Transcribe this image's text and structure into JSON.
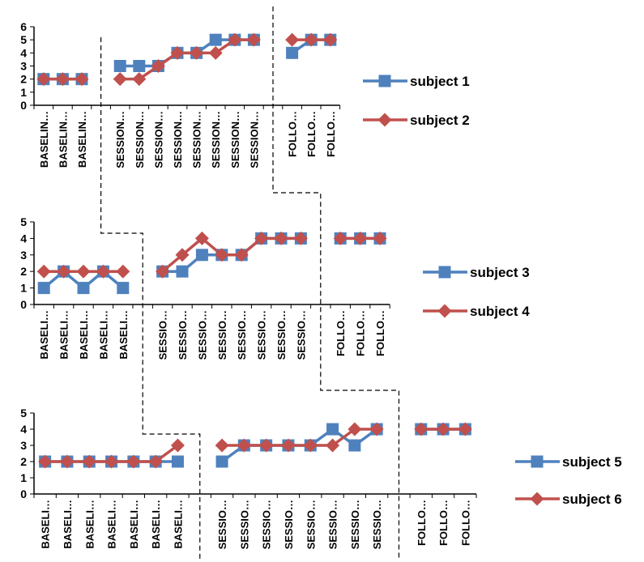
{
  "colors": {
    "series_a": "#4F81BD",
    "series_b": "#C0504D",
    "axis": "#000000",
    "phase_line": "#000000"
  },
  "chart_data": [
    {
      "type": "line",
      "ylim": [
        0,
        6
      ],
      "yticks": [
        "0",
        "1",
        "2",
        "3",
        "4",
        "5",
        "6"
      ],
      "categories": [
        "BASELIN…",
        "BASELIN…",
        "BASELIN…",
        "",
        "SESSION…",
        "SESSION…",
        "SESSION…",
        "SESSION…",
        "SESSION…",
        "SESSION…",
        "SESSION…",
        "SESSION…",
        "",
        "FOLLO…",
        "FOLLO…",
        "FOLLO…"
      ],
      "phases": [
        {
          "name": "baseline",
          "indices": [
            0,
            1,
            2
          ]
        },
        {
          "name": "sessions",
          "indices": [
            4,
            5,
            6,
            7,
            8,
            9,
            10,
            11
          ]
        },
        {
          "name": "follow-up",
          "indices": [
            13,
            14,
            15
          ]
        }
      ],
      "series": [
        {
          "name": "subject 1",
          "marker": "square",
          "values": [
            2,
            2,
            2,
            null,
            3,
            3,
            3,
            4,
            4,
            5,
            5,
            5,
            null,
            4,
            5,
            5
          ]
        },
        {
          "name": "subject 2",
          "marker": "diamond",
          "values": [
            2,
            2,
            2,
            null,
            2,
            2,
            3,
            4,
            4,
            4,
            5,
            5,
            null,
            5,
            5,
            5
          ]
        }
      ]
    },
    {
      "type": "line",
      "ylim": [
        0,
        5
      ],
      "yticks": [
        "0",
        "1",
        "2",
        "3",
        "4",
        "5"
      ],
      "categories": [
        "BASELI…",
        "BASELI…",
        "BASELI…",
        "BASELI…",
        "BASELI…",
        "",
        "SESSIO…",
        "SESSIO…",
        "SESSIO…",
        "SESSIO…",
        "SESSIO…",
        "SESSIO…",
        "SESSIO…",
        "SESSIO…",
        "",
        "FOLLO…",
        "FOLLO…",
        "FOLLO…"
      ],
      "phases": [
        {
          "name": "baseline",
          "indices": [
            0,
            1,
            2,
            3,
            4
          ]
        },
        {
          "name": "sessions",
          "indices": [
            6,
            7,
            8,
            9,
            10,
            11,
            12,
            13
          ]
        },
        {
          "name": "follow-up",
          "indices": [
            15,
            16,
            17
          ]
        }
      ],
      "series": [
        {
          "name": "subject 3",
          "marker": "square",
          "values": [
            1,
            2,
            1,
            2,
            1,
            null,
            2,
            2,
            3,
            3,
            3,
            4,
            4,
            4,
            null,
            4,
            4,
            4
          ]
        },
        {
          "name": "subject 4",
          "marker": "diamond",
          "values": [
            2,
            2,
            2,
            2,
            2,
            null,
            2,
            3,
            4,
            3,
            3,
            4,
            4,
            4,
            null,
            4,
            4,
            4
          ]
        }
      ]
    },
    {
      "type": "line",
      "ylim": [
        0,
        5
      ],
      "yticks": [
        "0",
        "1",
        "2",
        "3",
        "4",
        "5"
      ],
      "categories": [
        "BASELI…",
        "BASELI…",
        "BASELI…",
        "BASELI…",
        "BASELI…",
        "BASELI…",
        "BASELI…",
        "",
        "SESSIO…",
        "SESSIO…",
        "SESSIO…",
        "SESSIO…",
        "SESSIO…",
        "SESSIO…",
        "SESSIO…",
        "SESSIO…",
        "",
        "FOLLO…",
        "FOLLO…",
        "FOLLO…"
      ],
      "phases": [
        {
          "name": "baseline",
          "indices": [
            0,
            1,
            2,
            3,
            4,
            5,
            6
          ]
        },
        {
          "name": "sessions",
          "indices": [
            8,
            9,
            10,
            11,
            12,
            13,
            14,
            15
          ]
        },
        {
          "name": "follow-up",
          "indices": [
            17,
            18,
            19
          ]
        }
      ],
      "series": [
        {
          "name": "subject 5",
          "marker": "square",
          "values": [
            2,
            2,
            2,
            2,
            2,
            2,
            2,
            null,
            2,
            3,
            3,
            3,
            3,
            4,
            3,
            4,
            null,
            4,
            4,
            4
          ]
        },
        {
          "name": "subject 6",
          "marker": "diamond",
          "values": [
            2,
            2,
            2,
            2,
            2,
            2,
            3,
            null,
            3,
            3,
            3,
            3,
            3,
            3,
            4,
            4,
            null,
            4,
            4,
            4
          ]
        }
      ]
    }
  ]
}
